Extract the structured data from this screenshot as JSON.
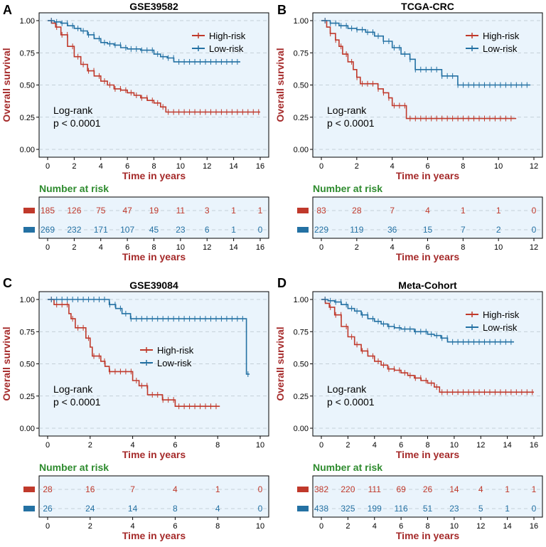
{
  "colors": {
    "high": "#c0392b",
    "low": "#2471a3",
    "plot_bg": "#eaf4fc",
    "grid": "#b8c4cc",
    "axis_title": "#a52a2a",
    "nar_title": "#2e8b2e"
  },
  "chart_data": [
    {
      "letter": "A",
      "type": "line",
      "title": "GSE39582",
      "ylabel": "Overall survival",
      "xlabel": "Time in years",
      "xlim": [
        0,
        16
      ],
      "ylim": [
        0,
        1
      ],
      "xticks": [
        0,
        2,
        4,
        6,
        8,
        10,
        12,
        14,
        16
      ],
      "yticks": [
        "0.00",
        "0.25",
        "0.50",
        "0.75",
        "1.00"
      ],
      "legend_placement": "top-right",
      "annotation": [
        "Log-rank",
        "p < 0.0001"
      ],
      "series": [
        {
          "name": "High-risk",
          "color_key": "high",
          "points": [
            [
              0,
              1
            ],
            [
              0.3,
              0.98
            ],
            [
              0.6,
              0.95
            ],
            [
              1,
              0.89
            ],
            [
              1.5,
              0.8
            ],
            [
              2,
              0.72
            ],
            [
              2.5,
              0.66
            ],
            [
              3,
              0.61
            ],
            [
              3.5,
              0.57
            ],
            [
              4,
              0.53
            ],
            [
              4.5,
              0.5
            ],
            [
              5,
              0.47
            ],
            [
              5.5,
              0.46
            ],
            [
              6,
              0.44
            ],
            [
              6.5,
              0.42
            ],
            [
              7,
              0.4
            ],
            [
              7.5,
              0.38
            ],
            [
              8,
              0.36
            ],
            [
              8.5,
              0.33
            ],
            [
              8.9,
              0.29
            ],
            [
              16,
              0.29
            ]
          ]
        },
        {
          "name": "Low-risk",
          "color_key": "low",
          "points": [
            [
              0,
              1
            ],
            [
              0.5,
              0.99
            ],
            [
              1,
              0.98
            ],
            [
              1.5,
              0.96
            ],
            [
              2,
              0.94
            ],
            [
              2.5,
              0.92
            ],
            [
              3,
              0.89
            ],
            [
              3.5,
              0.86
            ],
            [
              4,
              0.83
            ],
            [
              4.5,
              0.82
            ],
            [
              5,
              0.81
            ],
            [
              5.5,
              0.79
            ],
            [
              6,
              0.78
            ],
            [
              7,
              0.77
            ],
            [
              8,
              0.74
            ],
            [
              8.5,
              0.72
            ],
            [
              9,
              0.71
            ],
            [
              9.5,
              0.68
            ],
            [
              14.5,
              0.68
            ]
          ]
        }
      ],
      "risk_table": {
        "title": "Number at risk",
        "xlabel": "Time in years",
        "rows": [
          {
            "color_key": "high",
            "values": [
              "185",
              "126",
              "75",
              "47",
              "19",
              "11",
              "3",
              "1",
              "1"
            ]
          },
          {
            "color_key": "low",
            "values": [
              "269",
              "232",
              "171",
              "107",
              "45",
              "23",
              "6",
              "1",
              "0"
            ]
          }
        ]
      }
    },
    {
      "letter": "B",
      "type": "line",
      "title": "TCGA-CRC",
      "ylabel": "Overall survival",
      "xlabel": "Time in years",
      "xlim": [
        0,
        12
      ],
      "ylim": [
        0,
        1
      ],
      "xticks": [
        0,
        2,
        4,
        6,
        8,
        10,
        12
      ],
      "yticks": [
        "0.00",
        "0.25",
        "0.50",
        "0.75",
        "1.00"
      ],
      "legend_placement": "top-right",
      "annotation": [
        "Log-rank",
        "p < 0.0001"
      ],
      "series": [
        {
          "name": "High-risk",
          "color_key": "high",
          "points": [
            [
              0,
              1
            ],
            [
              0.3,
              0.95
            ],
            [
              0.5,
              0.9
            ],
            [
              0.8,
              0.85
            ],
            [
              1,
              0.8
            ],
            [
              1.2,
              0.74
            ],
            [
              1.5,
              0.68
            ],
            [
              1.8,
              0.62
            ],
            [
              2,
              0.56
            ],
            [
              2.2,
              0.51
            ],
            [
              3,
              0.51
            ],
            [
              3.2,
              0.47
            ],
            [
              3.5,
              0.44
            ],
            [
              3.8,
              0.4
            ],
            [
              4,
              0.34
            ],
            [
              4.7,
              0.34
            ],
            [
              4.8,
              0.24
            ],
            [
              11,
              0.24
            ]
          ]
        },
        {
          "name": "Low-risk",
          "color_key": "low",
          "points": [
            [
              0,
              1
            ],
            [
              0.5,
              0.98
            ],
            [
              1,
              0.96
            ],
            [
              1.5,
              0.94
            ],
            [
              2,
              0.93
            ],
            [
              2.5,
              0.91
            ],
            [
              3,
              0.88
            ],
            [
              3.5,
              0.84
            ],
            [
              4,
              0.79
            ],
            [
              4.5,
              0.74
            ],
            [
              5,
              0.7
            ],
            [
              5.3,
              0.62
            ],
            [
              6.5,
              0.62
            ],
            [
              6.8,
              0.57
            ],
            [
              7.5,
              0.57
            ],
            [
              7.7,
              0.5
            ],
            [
              11.8,
              0.5
            ]
          ]
        }
      ],
      "risk_table": {
        "title": "Number at risk",
        "xlabel": "Time in years",
        "rows": [
          {
            "color_key": "high",
            "values": [
              "83",
              "28",
              "7",
              "4",
              "1",
              "1",
              "0"
            ]
          },
          {
            "color_key": "low",
            "values": [
              "229",
              "119",
              "36",
              "15",
              "7",
              "2",
              "0"
            ]
          }
        ]
      }
    },
    {
      "letter": "C",
      "type": "line",
      "title": "GSE39084",
      "ylabel": "Overall survival",
      "xlabel": "Time in years",
      "xlim": [
        0,
        10
      ],
      "ylim": [
        0,
        1
      ],
      "xticks": [
        0,
        2,
        4,
        6,
        8,
        10
      ],
      "yticks": [
        "0.00",
        "0.25",
        "0.50",
        "0.75",
        "1.00"
      ],
      "legend_placement": "center",
      "annotation": [
        "Log-rank",
        "p < 0.0001"
      ],
      "series": [
        {
          "name": "High-risk",
          "color_key": "high",
          "points": [
            [
              0,
              1
            ],
            [
              0.3,
              1
            ],
            [
              0.3,
              0.96
            ],
            [
              0.9,
              0.96
            ],
            [
              1,
              0.89
            ],
            [
              1.1,
              0.85
            ],
            [
              1.3,
              0.78
            ],
            [
              1.7,
              0.78
            ],
            [
              1.8,
              0.7
            ],
            [
              2,
              0.63
            ],
            [
              2.1,
              0.56
            ],
            [
              2.5,
              0.52
            ],
            [
              2.7,
              0.48
            ],
            [
              2.9,
              0.44
            ],
            [
              3.8,
              0.44
            ],
            [
              4,
              0.37
            ],
            [
              4.3,
              0.33
            ],
            [
              4.7,
              0.26
            ],
            [
              5.3,
              0.26
            ],
            [
              5.4,
              0.22
            ],
            [
              5.9,
              0.22
            ],
            [
              6,
              0.17
            ],
            [
              8.1,
              0.17
            ]
          ]
        },
        {
          "name": "Low-risk",
          "color_key": "low",
          "points": [
            [
              0,
              1
            ],
            [
              2.8,
              1
            ],
            [
              2.9,
              0.96
            ],
            [
              3.2,
              0.93
            ],
            [
              3.5,
              0.89
            ],
            [
              3.9,
              0.85
            ],
            [
              9.3,
              0.85
            ],
            [
              9.35,
              0.42
            ],
            [
              9.5,
              0.42
            ]
          ]
        }
      ],
      "risk_table": {
        "title": "Number at risk",
        "xlabel": "Time in years",
        "rows": [
          {
            "color_key": "high",
            "values": [
              "28",
              "16",
              "7",
              "4",
              "1",
              "0"
            ]
          },
          {
            "color_key": "low",
            "values": [
              "26",
              "24",
              "14",
              "8",
              "4",
              "0"
            ]
          }
        ]
      }
    },
    {
      "letter": "D",
      "type": "line",
      "title": "Meta-Cohort",
      "ylabel": "Overall survival",
      "xlabel": "Time in years",
      "xlim": [
        0,
        16
      ],
      "ylim": [
        0,
        1
      ],
      "xticks": [
        0,
        2,
        4,
        6,
        8,
        10,
        12,
        14,
        16
      ],
      "yticks": [
        "0.00",
        "0.25",
        "0.50",
        "0.75",
        "1.00"
      ],
      "legend_placement": "top-right",
      "annotation": [
        "Log-rank",
        "p < 0.0001"
      ],
      "series": [
        {
          "name": "High-risk",
          "color_key": "high",
          "points": [
            [
              0,
              1
            ],
            [
              0.3,
              0.97
            ],
            [
              0.6,
              0.94
            ],
            [
              1,
              0.88
            ],
            [
              1.5,
              0.79
            ],
            [
              2,
              0.71
            ],
            [
              2.5,
              0.65
            ],
            [
              3,
              0.6
            ],
            [
              3.5,
              0.56
            ],
            [
              4,
              0.52
            ],
            [
              4.5,
              0.49
            ],
            [
              5,
              0.46
            ],
            [
              5.5,
              0.45
            ],
            [
              6,
              0.43
            ],
            [
              6.5,
              0.41
            ],
            [
              7,
              0.39
            ],
            [
              7.5,
              0.37
            ],
            [
              8,
              0.35
            ],
            [
              8.5,
              0.32
            ],
            [
              8.9,
              0.28
            ],
            [
              16,
              0.28
            ]
          ]
        },
        {
          "name": "Low-risk",
          "color_key": "low",
          "points": [
            [
              0,
              1
            ],
            [
              0.5,
              0.99
            ],
            [
              1,
              0.98
            ],
            [
              1.5,
              0.96
            ],
            [
              2,
              0.93
            ],
            [
              2.5,
              0.91
            ],
            [
              3,
              0.88
            ],
            [
              3.5,
              0.85
            ],
            [
              4,
              0.83
            ],
            [
              4.5,
              0.81
            ],
            [
              5,
              0.79
            ],
            [
              5.5,
              0.78
            ],
            [
              6,
              0.77
            ],
            [
              7,
              0.75
            ],
            [
              8,
              0.73
            ],
            [
              8.5,
              0.72
            ],
            [
              9,
              0.7
            ],
            [
              9.5,
              0.67
            ],
            [
              14.5,
              0.67
            ]
          ]
        }
      ],
      "risk_table": {
        "title": "Number at risk",
        "xlabel": "Time in years",
        "rows": [
          {
            "color_key": "high",
            "values": [
              "382",
              "220",
              "111",
              "69",
              "26",
              "14",
              "4",
              "1",
              "1"
            ]
          },
          {
            "color_key": "low",
            "values": [
              "438",
              "325",
              "199",
              "116",
              "51",
              "23",
              "5",
              "1",
              "0"
            ]
          }
        ]
      }
    }
  ]
}
